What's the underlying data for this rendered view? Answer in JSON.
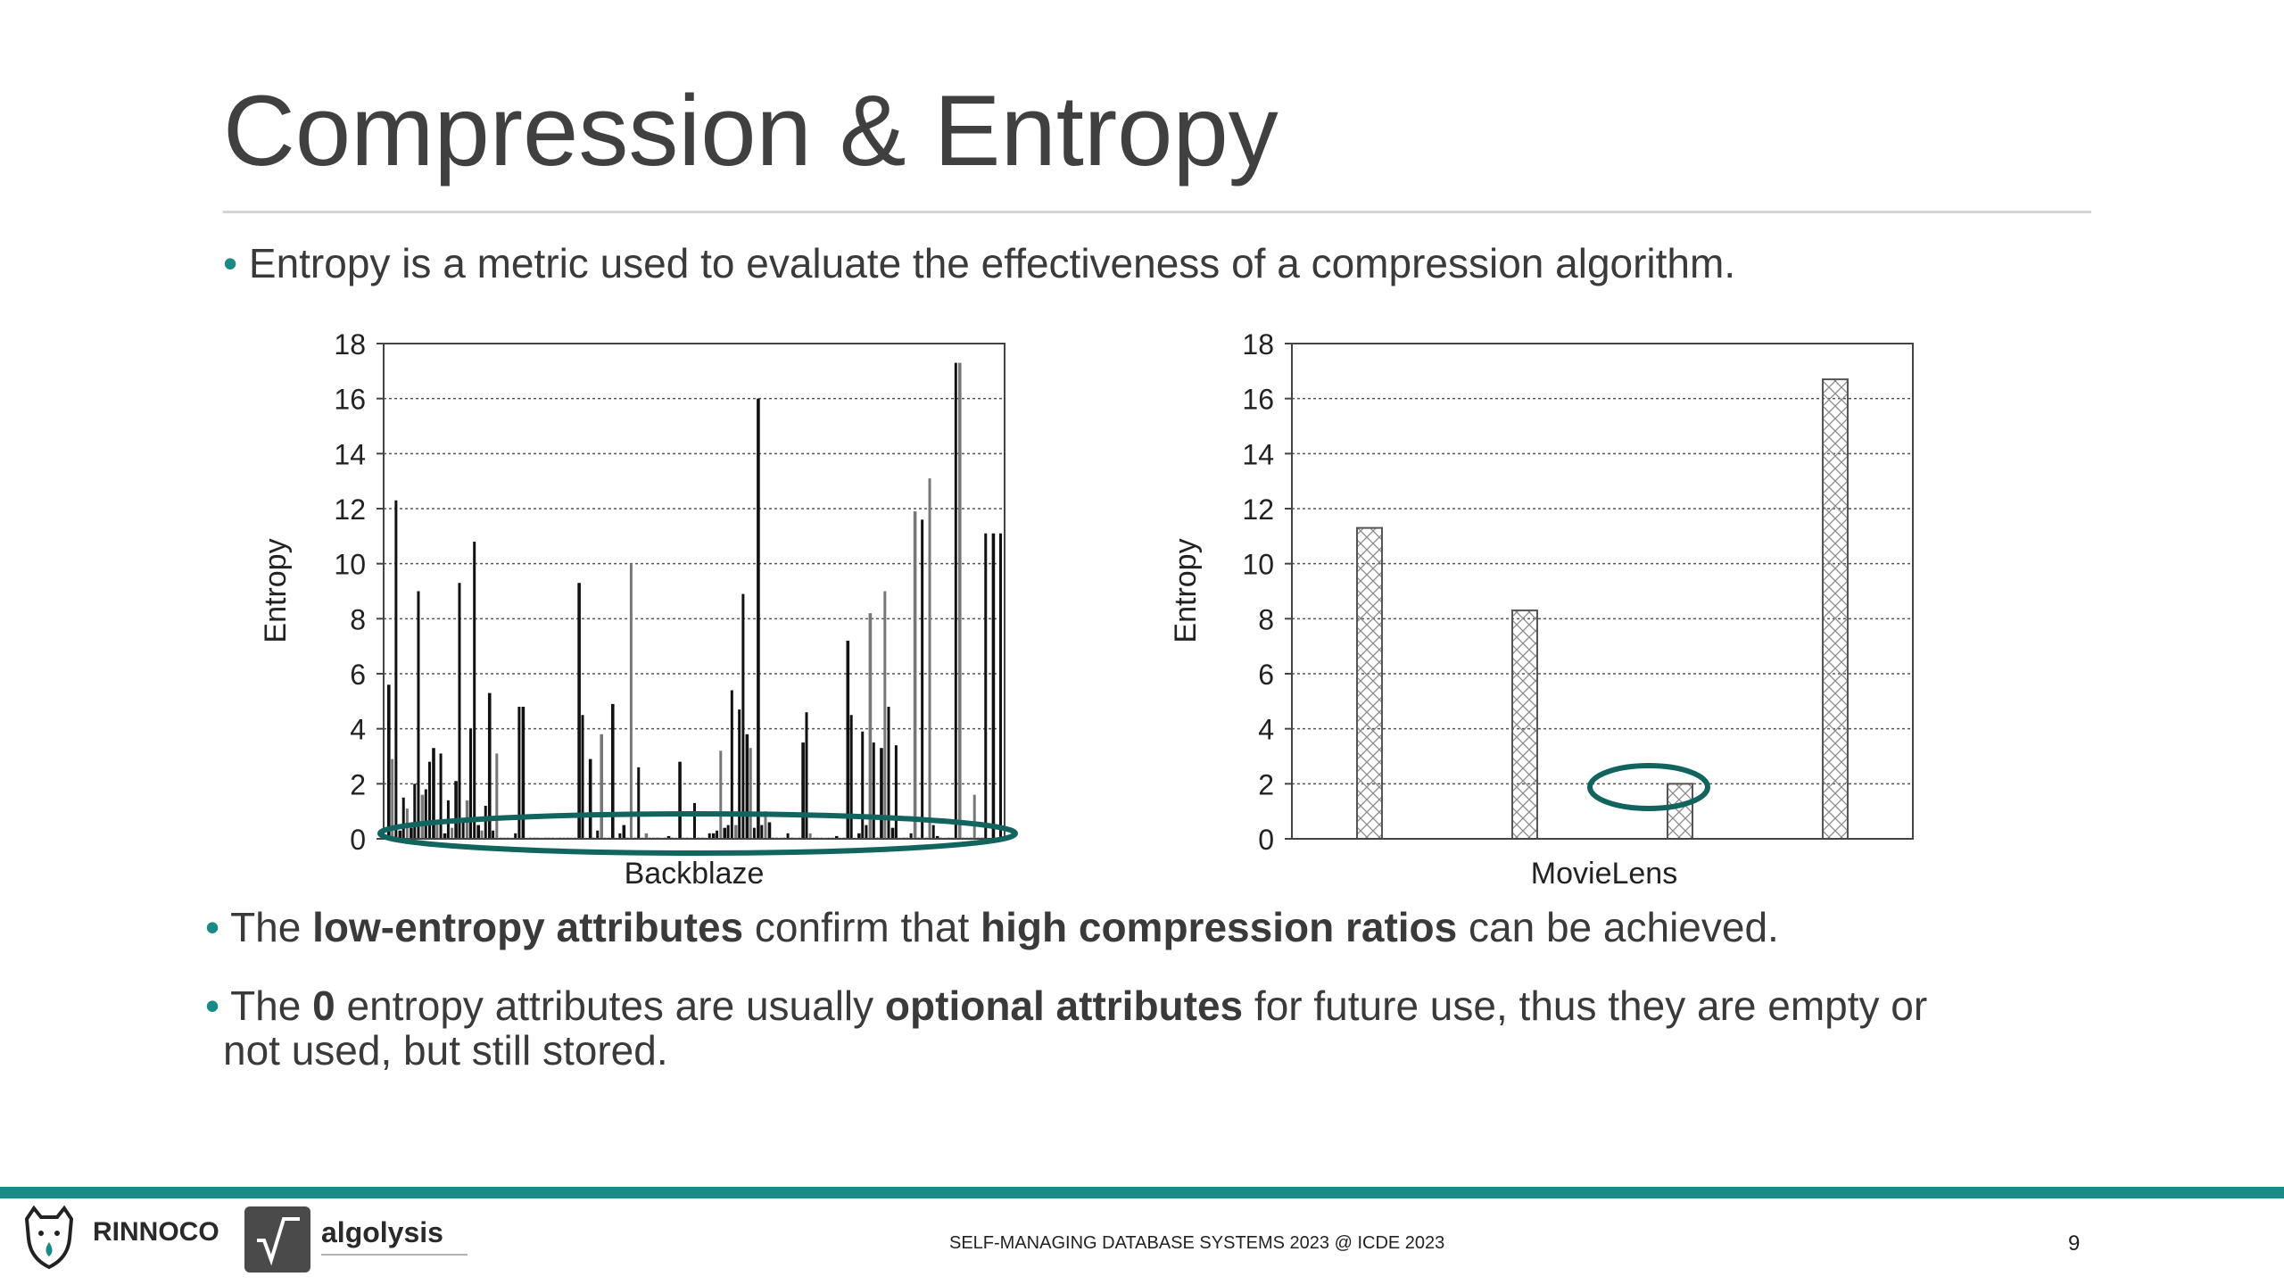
{
  "slide": {
    "title": "Compression & Entropy",
    "bullet_char": "•",
    "bullet1": "Entropy is a metric used to evaluate the effectiveness of a compression algorithm.",
    "bullet2": {
      "p1": "The ",
      "b1": "low-entropy attributes",
      "p2": " confirm that ",
      "b2": "high compression ratios",
      "p3": " can be achieved."
    },
    "bullet3": {
      "p1": "The ",
      "b1": "0",
      "p2": " entropy attributes are usually ",
      "b2": "optional attributes",
      "p3": " for future use, thus they are empty or",
      "line2": "not used, but still stored."
    },
    "footer": "SELF-MANAGING DATABASE SYSTEMS 2023 @ ICDE 2023",
    "page_number": "9",
    "logos": {
      "left": "RINNOCO",
      "right": "algolysis"
    }
  },
  "colors": {
    "accent": "#1a8a86",
    "highlight_ellipse": "#12645f"
  },
  "chart_data": [
    {
      "type": "bar",
      "title": "",
      "xlabel": "Backblaze",
      "ylabel": "Entropy",
      "ylim": [
        0,
        18
      ],
      "yticks": [
        0,
        2,
        4,
        6,
        8,
        10,
        12,
        14,
        16,
        18
      ],
      "grid": true,
      "values": [
        5.6,
        2.9,
        12.3,
        0.3,
        1.5,
        1.1,
        0.4,
        2.0,
        9.0,
        1.6,
        1.8,
        2.8,
        3.3,
        0.5,
        3.1,
        0.2,
        1.4,
        0.4,
        2.1,
        9.3,
        0.6,
        1.4,
        4.0,
        10.8,
        0.5,
        0.3,
        1.2,
        5.3,
        0.3,
        3.1,
        0,
        0,
        0,
        0,
        0.2,
        4.8,
        4.8,
        0,
        0,
        0,
        0,
        0,
        0,
        0,
        0,
        0,
        0,
        0,
        0,
        0,
        0,
        9.3,
        4.5,
        0,
        2.9,
        0,
        0.3,
        3.8,
        0,
        0,
        4.9,
        0,
        0.2,
        0.5,
        0,
        10.0,
        0,
        2.6,
        0,
        0.2,
        0,
        0,
        0,
        0,
        0,
        0.1,
        0,
        0,
        2.8,
        0,
        0,
        0,
        1.3,
        0,
        0,
        0,
        0.2,
        0.2,
        0.3,
        3.2,
        0.4,
        0.5,
        5.4,
        0.5,
        4.7,
        8.9,
        3.8,
        3.3,
        0.4,
        16.0,
        0.5,
        1.0,
        0.6,
        0,
        0,
        0,
        0,
        0.2,
        0,
        0,
        0,
        3.5,
        4.6,
        0.2,
        0,
        0,
        0,
        0,
        0,
        0,
        0.1,
        0,
        0,
        7.2,
        4.5,
        0,
        0.2,
        3.9,
        0.5,
        8.2,
        3.5,
        0,
        3.3,
        9.0,
        4.8,
        0.4,
        3.4,
        0,
        0,
        0,
        0.2,
        11.9,
        0,
        11.6,
        0,
        13.1,
        0.5,
        0.1,
        0,
        0,
        0,
        0,
        17.3,
        17.3,
        0,
        0,
        0,
        1.6,
        0,
        0,
        11.1,
        0,
        11.1,
        0,
        11.1
      ],
      "annotation": "ellipse around bars with entropy ≈ 0"
    },
    {
      "type": "bar",
      "title": "",
      "xlabel": "MovieLens",
      "ylabel": "Entropy",
      "ylim": [
        0,
        18
      ],
      "yticks": [
        0,
        2,
        4,
        6,
        8,
        10,
        12,
        14,
        16,
        18
      ],
      "grid": true,
      "values": [
        11.3,
        8.3,
        2.0,
        16.7
      ],
      "pattern": "crosshatch",
      "annotation": "ellipse around the bar with entropy ≈ 2"
    }
  ]
}
